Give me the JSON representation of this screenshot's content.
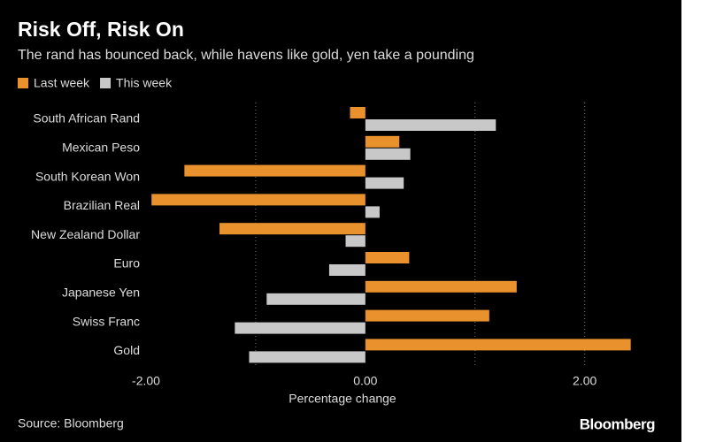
{
  "chart_data": {
    "type": "hbar",
    "title": "Risk Off, Risk On",
    "subtitle": "The rand has bounced back, while havens like gold, yen take a pounding",
    "x_label": "Percentage change",
    "source": "Source: Bloomberg",
    "brand": "Bloomberg",
    "categories": [
      "South African Rand",
      "Mexican Peso",
      "South Korean Won",
      "Brazilian Real",
      "New Zealand Dollar",
      "Euro",
      "Japanese Yen",
      "Swiss Franc",
      "Gold"
    ],
    "series": [
      {
        "name": "Last week",
        "color": "#e8912d",
        "values": [
          -0.14,
          0.31,
          -1.65,
          -1.95,
          -1.33,
          0.4,
          1.38,
          1.13,
          2.42
        ]
      },
      {
        "name": "This week",
        "color": "#c8c8c8",
        "values": [
          1.19,
          0.41,
          0.35,
          0.13,
          -0.18,
          -0.33,
          -0.9,
          -1.19,
          -1.06
        ]
      }
    ],
    "xlim": [
      -2,
      2.6
    ],
    "xticks": [
      {
        "value": -2,
        "label": "-2.00"
      },
      {
        "value": 0,
        "label": "0.00"
      },
      {
        "value": 2,
        "label": "2.00"
      }
    ],
    "grid_lines": [
      -1,
      1,
      2
    ],
    "legend": "top-left"
  }
}
